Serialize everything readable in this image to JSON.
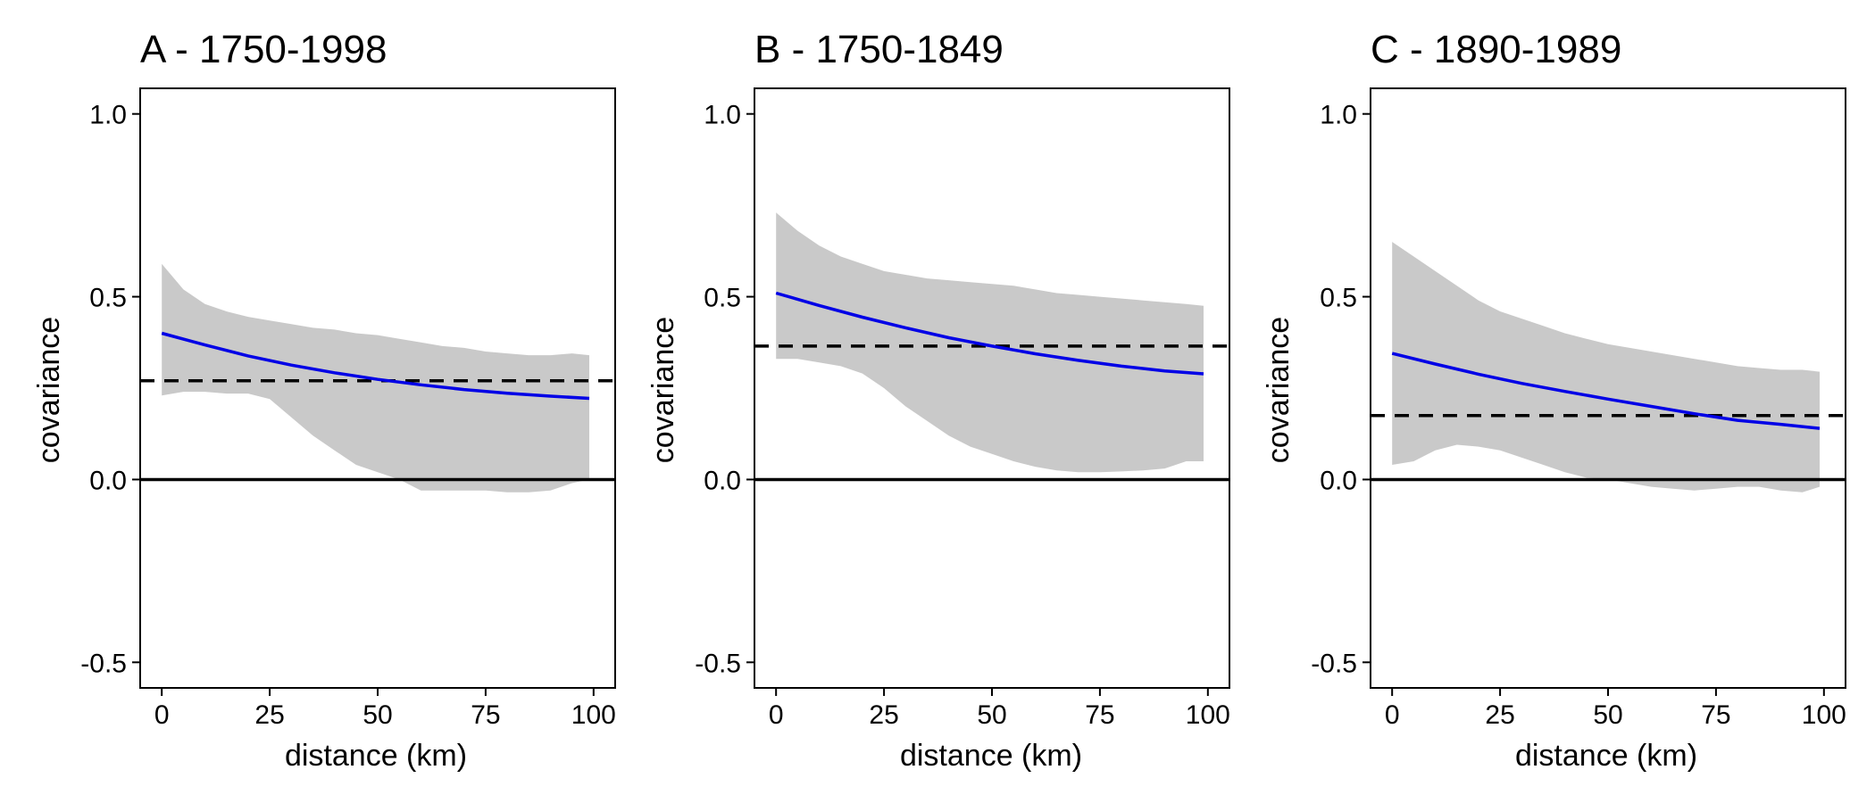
{
  "chart_data": [
    {
      "type": "line",
      "title": "A - 1750-1998",
      "xlabel": "distance (km)",
      "ylabel": "covariance",
      "xlim": [
        -5,
        105
      ],
      "ylim": [
        -0.57,
        1.07
      ],
      "x_ticks": [
        0,
        25,
        50,
        75,
        100
      ],
      "x_tick_labels": [
        "0",
        "25",
        "50",
        "75",
        "100"
      ],
      "y_ticks": [
        -0.5,
        0,
        0.5,
        1
      ],
      "y_tick_labels": [
        "-0.5",
        "0.0",
        "0.5",
        "1.0"
      ],
      "grid": false,
      "reference_lines": [
        {
          "y": 0,
          "style": "solid",
          "color": "#000000"
        },
        {
          "y": 0.27,
          "style": "dashed",
          "color": "#000000"
        }
      ],
      "band": {
        "color": "#c9c9c9",
        "x": [
          0,
          5,
          10,
          15,
          20,
          25,
          30,
          35,
          40,
          45,
          50,
          55,
          60,
          65,
          70,
          75,
          80,
          85,
          90,
          95,
          99
        ],
        "upper": [
          0.59,
          0.52,
          0.48,
          0.46,
          0.445,
          0.435,
          0.425,
          0.415,
          0.41,
          0.4,
          0.395,
          0.385,
          0.375,
          0.365,
          0.36,
          0.35,
          0.345,
          0.34,
          0.34,
          0.345,
          0.34
        ],
        "lower": [
          0.23,
          0.24,
          0.24,
          0.235,
          0.235,
          0.22,
          0.17,
          0.12,
          0.08,
          0.04,
          0.02,
          0.0,
          -0.03,
          -0.03,
          -0.03,
          -0.03,
          -0.035,
          -0.035,
          -0.03,
          -0.01,
          0.0
        ]
      },
      "series": [
        {
          "color": "#0000e6",
          "x": [
            0,
            10,
            20,
            30,
            40,
            50,
            60,
            70,
            80,
            90,
            99
          ],
          "y": [
            0.4,
            0.368,
            0.338,
            0.313,
            0.292,
            0.274,
            0.259,
            0.246,
            0.236,
            0.228,
            0.222
          ]
        }
      ]
    },
    {
      "type": "line",
      "title": "B - 1750-1849",
      "xlabel": "distance (km)",
      "ylabel": "covariance",
      "xlim": [
        -5,
        105
      ],
      "ylim": [
        -0.57,
        1.07
      ],
      "x_ticks": [
        0,
        25,
        50,
        75,
        100
      ],
      "x_tick_labels": [
        "0",
        "25",
        "50",
        "75",
        "100"
      ],
      "y_ticks": [
        -0.5,
        0,
        0.5,
        1
      ],
      "y_tick_labels": [
        "-0.5",
        "0.0",
        "0.5",
        "1.0"
      ],
      "grid": false,
      "reference_lines": [
        {
          "y": 0,
          "style": "solid",
          "color": "#000000"
        },
        {
          "y": 0.365,
          "style": "dashed",
          "color": "#000000"
        }
      ],
      "band": {
        "color": "#c9c9c9",
        "x": [
          0,
          5,
          10,
          15,
          20,
          25,
          30,
          35,
          40,
          45,
          50,
          55,
          60,
          65,
          70,
          75,
          80,
          85,
          90,
          95,
          99
        ],
        "upper": [
          0.73,
          0.68,
          0.64,
          0.61,
          0.59,
          0.57,
          0.56,
          0.55,
          0.545,
          0.54,
          0.535,
          0.53,
          0.52,
          0.51,
          0.505,
          0.5,
          0.495,
          0.49,
          0.485,
          0.48,
          0.475
        ],
        "lower": [
          0.33,
          0.33,
          0.32,
          0.31,
          0.29,
          0.25,
          0.2,
          0.16,
          0.12,
          0.09,
          0.07,
          0.05,
          0.035,
          0.025,
          0.02,
          0.02,
          0.022,
          0.025,
          0.03,
          0.05,
          0.05
        ]
      },
      "series": [
        {
          "color": "#0000e6",
          "x": [
            0,
            10,
            20,
            30,
            40,
            50,
            60,
            70,
            80,
            90,
            99
          ],
          "y": [
            0.51,
            0.476,
            0.444,
            0.415,
            0.388,
            0.365,
            0.344,
            0.326,
            0.31,
            0.297,
            0.289
          ]
        }
      ]
    },
    {
      "type": "line",
      "title": "C - 1890-1989",
      "xlabel": "distance (km)",
      "ylabel": "covariance",
      "xlim": [
        -5,
        105
      ],
      "ylim": [
        -0.57,
        1.07
      ],
      "x_ticks": [
        0,
        25,
        50,
        75,
        100
      ],
      "x_tick_labels": [
        "0",
        "25",
        "50",
        "75",
        "100"
      ],
      "y_ticks": [
        -0.5,
        0,
        0.5,
        1
      ],
      "y_tick_labels": [
        "-0.5",
        "0.0",
        "0.5",
        "1.0"
      ],
      "grid": false,
      "reference_lines": [
        {
          "y": 0,
          "style": "solid",
          "color": "#000000"
        },
        {
          "y": 0.175,
          "style": "dashed",
          "color": "#000000"
        }
      ],
      "band": {
        "color": "#c9c9c9",
        "x": [
          0,
          5,
          10,
          15,
          20,
          25,
          30,
          35,
          40,
          45,
          50,
          55,
          60,
          65,
          70,
          75,
          80,
          85,
          90,
          95,
          99
        ],
        "upper": [
          0.65,
          0.61,
          0.57,
          0.53,
          0.49,
          0.46,
          0.44,
          0.42,
          0.4,
          0.385,
          0.37,
          0.36,
          0.35,
          0.34,
          0.33,
          0.32,
          0.31,
          0.305,
          0.3,
          0.3,
          0.295
        ],
        "lower": [
          0.04,
          0.05,
          0.08,
          0.095,
          0.09,
          0.08,
          0.06,
          0.04,
          0.02,
          0.005,
          0.0,
          -0.01,
          -0.02,
          -0.025,
          -0.03,
          -0.025,
          -0.02,
          -0.02,
          -0.03,
          -0.035,
          -0.02
        ]
      },
      "series": [
        {
          "color": "#0000e6",
          "x": [
            0,
            10,
            20,
            30,
            40,
            50,
            60,
            70,
            80,
            90,
            99
          ],
          "y": [
            0.345,
            0.316,
            0.288,
            0.263,
            0.241,
            0.22,
            0.2,
            0.18,
            0.162,
            0.151,
            0.14
          ]
        }
      ]
    }
  ]
}
